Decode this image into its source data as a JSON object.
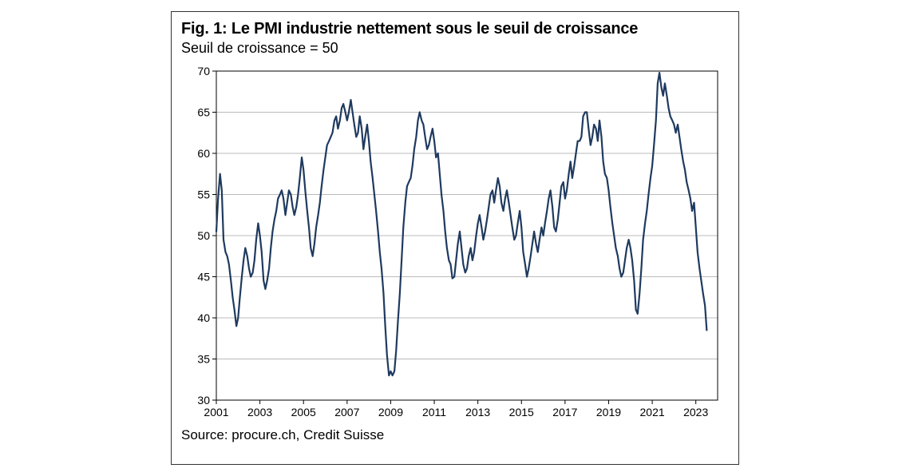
{
  "figure": {
    "title": "Fig. 1: Le PMI industrie nettement sous le seuil de croissance",
    "subtitle": "Seuil de croissance = 50",
    "source": "Source: procure.ch, Credit Suisse"
  },
  "chart": {
    "type": "line",
    "background_color": "#ffffff",
    "grid_color": "#bbbbbb",
    "axis_color": "#000000",
    "tick_fontsize": 14,
    "xlim": [
      2001,
      2024
    ],
    "ylim": [
      30,
      70
    ],
    "xticks": [
      2001,
      2003,
      2005,
      2007,
      2009,
      2011,
      2013,
      2015,
      2017,
      2019,
      2021,
      2023
    ],
    "yticks": [
      30,
      35,
      40,
      45,
      50,
      55,
      60,
      65,
      70
    ],
    "series": {
      "color": "#1f3a5f",
      "width": 2.2,
      "points": [
        [
          2001.0,
          50.5
        ],
        [
          2001.08,
          54.5
        ],
        [
          2001.17,
          57.5
        ],
        [
          2001.25,
          55.5
        ],
        [
          2001.33,
          49.5
        ],
        [
          2001.42,
          48.0
        ],
        [
          2001.5,
          47.5
        ],
        [
          2001.58,
          46.5
        ],
        [
          2001.67,
          44.5
        ],
        [
          2001.75,
          42.5
        ],
        [
          2001.83,
          41.0
        ],
        [
          2001.92,
          39.0
        ],
        [
          2002.0,
          40.0
        ],
        [
          2002.08,
          42.5
        ],
        [
          2002.17,
          45.0
        ],
        [
          2002.25,
          47.0
        ],
        [
          2002.33,
          48.5
        ],
        [
          2002.42,
          47.5
        ],
        [
          2002.5,
          46.0
        ],
        [
          2002.58,
          45.0
        ],
        [
          2002.67,
          45.5
        ],
        [
          2002.75,
          47.0
        ],
        [
          2002.83,
          49.5
        ],
        [
          2002.92,
          51.5
        ],
        [
          2003.0,
          50.0
        ],
        [
          2003.08,
          48.0
        ],
        [
          2003.17,
          44.5
        ],
        [
          2003.25,
          43.5
        ],
        [
          2003.33,
          44.5
        ],
        [
          2003.42,
          46.0
        ],
        [
          2003.5,
          48.5
        ],
        [
          2003.58,
          50.5
        ],
        [
          2003.67,
          52.0
        ],
        [
          2003.75,
          53.0
        ],
        [
          2003.83,
          54.5
        ],
        [
          2003.92,
          55.0
        ],
        [
          2004.0,
          55.5
        ],
        [
          2004.08,
          54.5
        ],
        [
          2004.17,
          52.5
        ],
        [
          2004.25,
          54.0
        ],
        [
          2004.33,
          55.5
        ],
        [
          2004.42,
          55.0
        ],
        [
          2004.5,
          53.5
        ],
        [
          2004.58,
          52.5
        ],
        [
          2004.67,
          53.5
        ],
        [
          2004.75,
          55.0
        ],
        [
          2004.83,
          57.0
        ],
        [
          2004.92,
          59.5
        ],
        [
          2005.0,
          58.0
        ],
        [
          2005.08,
          55.5
        ],
        [
          2005.17,
          53.0
        ],
        [
          2005.25,
          51.0
        ],
        [
          2005.33,
          48.5
        ],
        [
          2005.42,
          47.5
        ],
        [
          2005.5,
          49.0
        ],
        [
          2005.58,
          51.0
        ],
        [
          2005.67,
          52.5
        ],
        [
          2005.75,
          54.0
        ],
        [
          2005.83,
          56.0
        ],
        [
          2005.92,
          58.0
        ],
        [
          2006.0,
          59.5
        ],
        [
          2006.08,
          61.0
        ],
        [
          2006.17,
          61.5
        ],
        [
          2006.25,
          62.0
        ],
        [
          2006.33,
          62.5
        ],
        [
          2006.42,
          64.0
        ],
        [
          2006.5,
          64.5
        ],
        [
          2006.58,
          63.0
        ],
        [
          2006.67,
          64.0
        ],
        [
          2006.75,
          65.5
        ],
        [
          2006.83,
          66.0
        ],
        [
          2006.92,
          65.0
        ],
        [
          2007.0,
          64.0
        ],
        [
          2007.08,
          65.0
        ],
        [
          2007.17,
          66.5
        ],
        [
          2007.25,
          65.0
        ],
        [
          2007.33,
          63.5
        ],
        [
          2007.42,
          62.0
        ],
        [
          2007.5,
          62.5
        ],
        [
          2007.58,
          64.5
        ],
        [
          2007.67,
          63.0
        ],
        [
          2007.75,
          60.5
        ],
        [
          2007.83,
          62.0
        ],
        [
          2007.92,
          63.5
        ],
        [
          2008.0,
          61.5
        ],
        [
          2008.08,
          59.0
        ],
        [
          2008.17,
          57.0
        ],
        [
          2008.25,
          55.0
        ],
        [
          2008.33,
          53.0
        ],
        [
          2008.42,
          50.5
        ],
        [
          2008.5,
          48.0
        ],
        [
          2008.58,
          46.0
        ],
        [
          2008.67,
          43.0
        ],
        [
          2008.75,
          39.0
        ],
        [
          2008.83,
          35.5
        ],
        [
          2008.92,
          33.0
        ],
        [
          2009.0,
          33.5
        ],
        [
          2009.08,
          33.0
        ],
        [
          2009.17,
          33.5
        ],
        [
          2009.25,
          36.0
        ],
        [
          2009.33,
          39.5
        ],
        [
          2009.42,
          43.0
        ],
        [
          2009.5,
          47.0
        ],
        [
          2009.58,
          51.0
        ],
        [
          2009.67,
          54.0
        ],
        [
          2009.75,
          56.0
        ],
        [
          2009.83,
          56.5
        ],
        [
          2009.92,
          57.0
        ],
        [
          2010.0,
          58.5
        ],
        [
          2010.08,
          60.5
        ],
        [
          2010.17,
          62.0
        ],
        [
          2010.25,
          64.0
        ],
        [
          2010.33,
          65.0
        ],
        [
          2010.42,
          64.0
        ],
        [
          2010.5,
          63.5
        ],
        [
          2010.58,
          62.0
        ],
        [
          2010.67,
          60.5
        ],
        [
          2010.75,
          61.0
        ],
        [
          2010.83,
          62.0
        ],
        [
          2010.92,
          63.0
        ],
        [
          2011.0,
          61.5
        ],
        [
          2011.08,
          59.5
        ],
        [
          2011.17,
          60.0
        ],
        [
          2011.25,
          57.5
        ],
        [
          2011.33,
          55.0
        ],
        [
          2011.42,
          53.0
        ],
        [
          2011.5,
          50.5
        ],
        [
          2011.58,
          48.5
        ],
        [
          2011.67,
          47.0
        ],
        [
          2011.75,
          46.5
        ],
        [
          2011.83,
          44.8
        ],
        [
          2011.92,
          45.0
        ],
        [
          2012.0,
          47.0
        ],
        [
          2012.08,
          49.0
        ],
        [
          2012.17,
          50.5
        ],
        [
          2012.25,
          48.5
        ],
        [
          2012.33,
          46.5
        ],
        [
          2012.42,
          45.5
        ],
        [
          2012.5,
          46.0
        ],
        [
          2012.58,
          47.5
        ],
        [
          2012.67,
          48.5
        ],
        [
          2012.75,
          47.0
        ],
        [
          2012.83,
          48.0
        ],
        [
          2012.92,
          50.0
        ],
        [
          2013.0,
          51.5
        ],
        [
          2013.08,
          52.5
        ],
        [
          2013.17,
          51.0
        ],
        [
          2013.25,
          49.5
        ],
        [
          2013.33,
          50.5
        ],
        [
          2013.42,
          52.0
        ],
        [
          2013.5,
          53.5
        ],
        [
          2013.58,
          55.0
        ],
        [
          2013.67,
          55.5
        ],
        [
          2013.75,
          54.0
        ],
        [
          2013.83,
          55.5
        ],
        [
          2013.92,
          57.0
        ],
        [
          2014.0,
          56.0
        ],
        [
          2014.08,
          54.0
        ],
        [
          2014.17,
          53.0
        ],
        [
          2014.25,
          54.5
        ],
        [
          2014.33,
          55.5
        ],
        [
          2014.42,
          54.0
        ],
        [
          2014.5,
          52.5
        ],
        [
          2014.58,
          51.0
        ],
        [
          2014.67,
          49.5
        ],
        [
          2014.75,
          50.0
        ],
        [
          2014.83,
          51.5
        ],
        [
          2014.92,
          53.0
        ],
        [
          2015.0,
          51.0
        ],
        [
          2015.08,
          48.0
        ],
        [
          2015.17,
          46.5
        ],
        [
          2015.25,
          45.0
        ],
        [
          2015.33,
          46.0
        ],
        [
          2015.42,
          47.5
        ],
        [
          2015.5,
          49.0
        ],
        [
          2015.58,
          50.5
        ],
        [
          2015.67,
          49.0
        ],
        [
          2015.75,
          48.0
        ],
        [
          2015.83,
          49.5
        ],
        [
          2015.92,
          51.0
        ],
        [
          2016.0,
          50.0
        ],
        [
          2016.08,
          51.5
        ],
        [
          2016.17,
          53.0
        ],
        [
          2016.25,
          54.5
        ],
        [
          2016.33,
          55.5
        ],
        [
          2016.42,
          53.5
        ],
        [
          2016.5,
          51.0
        ],
        [
          2016.58,
          50.5
        ],
        [
          2016.67,
          52.0
        ],
        [
          2016.75,
          54.0
        ],
        [
          2016.83,
          56.0
        ],
        [
          2016.92,
          56.5
        ],
        [
          2017.0,
          54.5
        ],
        [
          2017.08,
          55.5
        ],
        [
          2017.17,
          57.5
        ],
        [
          2017.25,
          59.0
        ],
        [
          2017.33,
          57.0
        ],
        [
          2017.42,
          58.5
        ],
        [
          2017.5,
          60.0
        ],
        [
          2017.58,
          61.5
        ],
        [
          2017.67,
          61.5
        ],
        [
          2017.75,
          62.0
        ],
        [
          2017.83,
          64.5
        ],
        [
          2017.92,
          65.0
        ],
        [
          2018.0,
          65.0
        ],
        [
          2018.08,
          63.0
        ],
        [
          2018.17,
          61.0
        ],
        [
          2018.25,
          62.0
        ],
        [
          2018.33,
          63.5
        ],
        [
          2018.42,
          63.0
        ],
        [
          2018.5,
          61.5
        ],
        [
          2018.58,
          64.0
        ],
        [
          2018.67,
          62.0
        ],
        [
          2018.75,
          59.0
        ],
        [
          2018.83,
          57.5
        ],
        [
          2018.92,
          57.0
        ],
        [
          2019.0,
          55.5
        ],
        [
          2019.08,
          53.5
        ],
        [
          2019.17,
          51.5
        ],
        [
          2019.25,
          50.0
        ],
        [
          2019.33,
          48.5
        ],
        [
          2019.42,
          47.5
        ],
        [
          2019.5,
          46.0
        ],
        [
          2019.58,
          45.0
        ],
        [
          2019.67,
          45.5
        ],
        [
          2019.75,
          47.0
        ],
        [
          2019.83,
          48.5
        ],
        [
          2019.92,
          49.5
        ],
        [
          2020.0,
          48.5
        ],
        [
          2020.08,
          47.0
        ],
        [
          2020.17,
          44.5
        ],
        [
          2020.25,
          41.0
        ],
        [
          2020.33,
          40.5
        ],
        [
          2020.42,
          43.0
        ],
        [
          2020.5,
          46.0
        ],
        [
          2020.58,
          49.5
        ],
        [
          2020.67,
          51.5
        ],
        [
          2020.75,
          53.0
        ],
        [
          2020.83,
          55.0
        ],
        [
          2020.92,
          57.0
        ],
        [
          2021.0,
          58.5
        ],
        [
          2021.08,
          61.0
        ],
        [
          2021.17,
          64.0
        ],
        [
          2021.25,
          68.5
        ],
        [
          2021.33,
          69.8
        ],
        [
          2021.42,
          68.0
        ],
        [
          2021.5,
          67.0
        ],
        [
          2021.58,
          68.5
        ],
        [
          2021.67,
          67.0
        ],
        [
          2021.75,
          65.5
        ],
        [
          2021.83,
          64.5
        ],
        [
          2021.92,
          64.0
        ],
        [
          2022.0,
          63.5
        ],
        [
          2022.08,
          62.5
        ],
        [
          2022.17,
          63.5
        ],
        [
          2022.25,
          62.0
        ],
        [
          2022.33,
          60.5
        ],
        [
          2022.42,
          59.0
        ],
        [
          2022.5,
          58.0
        ],
        [
          2022.58,
          56.5
        ],
        [
          2022.67,
          55.5
        ],
        [
          2022.75,
          54.5
        ],
        [
          2022.83,
          53.0
        ],
        [
          2022.92,
          54.0
        ],
        [
          2023.0,
          51.0
        ],
        [
          2023.08,
          48.0
        ],
        [
          2023.17,
          46.0
        ],
        [
          2023.25,
          44.5
        ],
        [
          2023.33,
          43.0
        ],
        [
          2023.42,
          41.5
        ],
        [
          2023.5,
          38.5
        ]
      ]
    }
  }
}
